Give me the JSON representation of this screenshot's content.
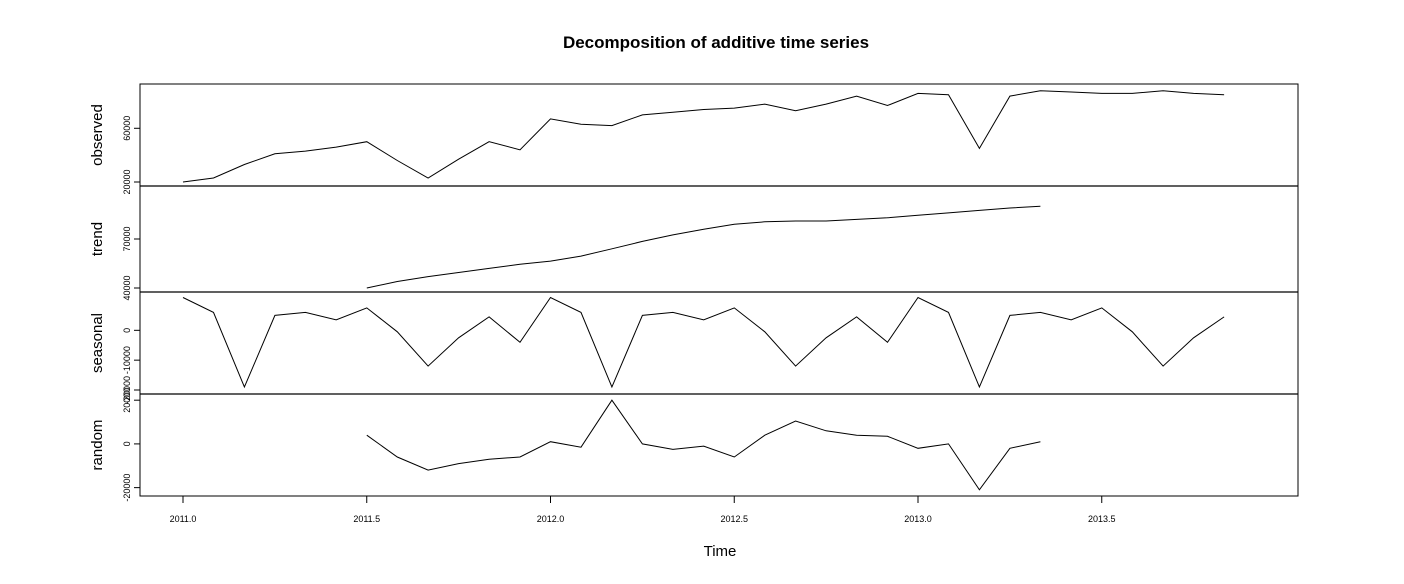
{
  "chart_data": {
    "type": "line",
    "title": "Decomposition of additive time series",
    "xlabel": "Time",
    "xlim": [
      2011.0,
      2013.917
    ],
    "x_ticks": [
      2011.0,
      2011.5,
      2012.0,
      2012.5,
      2013.0,
      2013.5
    ],
    "x_tick_labels": [
      "2011.0",
      "2011.5",
      "2012.0",
      "2012.5",
      "2013.0",
      "2013.5"
    ],
    "x": [
      2011.0,
      2011.083,
      2011.167,
      2011.25,
      2011.333,
      2011.417,
      2011.5,
      2011.583,
      2011.667,
      2011.75,
      2011.833,
      2011.917,
      2012.0,
      2012.083,
      2012.167,
      2012.25,
      2012.333,
      2012.417,
      2012.5,
      2012.583,
      2012.667,
      2012.75,
      2012.833,
      2012.917,
      2013.0,
      2013.083,
      2013.167,
      2013.25,
      2013.333,
      2013.417,
      2013.5,
      2013.583,
      2013.667,
      2013.75,
      2013.833
    ],
    "panels": [
      {
        "name": "observed",
        "ylim": [
          20000,
          90000
        ],
        "y_ticks": [
          20000,
          60000
        ],
        "y_tick_labels": [
          "20000",
          "60000"
        ],
        "values": [
          20000,
          23000,
          33000,
          41000,
          43000,
          46000,
          50000,
          36000,
          23000,
          37000,
          50000,
          44000,
          67000,
          63000,
          62000,
          70000,
          72000,
          74000,
          75000,
          78000,
          73000,
          78000,
          84000,
          77000,
          86000,
          85000,
          45000,
          84000,
          88000,
          87000,
          86000,
          86000,
          88000,
          86000,
          85000
        ]
      },
      {
        "name": "trend",
        "ylim": [
          40000,
          100000
        ],
        "y_ticks": [
          40000,
          70000
        ],
        "y_tick_labels": [
          "40000",
          "70000"
        ],
        "values": [
          null,
          null,
          null,
          null,
          null,
          null,
          40000,
          44000,
          47000,
          49500,
          52000,
          54500,
          56500,
          59500,
          64000,
          68500,
          72500,
          76000,
          79000,
          80500,
          81000,
          81000,
          82000,
          83000,
          84500,
          86000,
          87500,
          89000,
          90000,
          null,
          null,
          null,
          null,
          null,
          null
        ]
      },
      {
        "name": "seasonal",
        "ylim": [
          -20000,
          11500
        ],
        "y_ticks": [
          -20000,
          -10000,
          0
        ],
        "y_tick_labels": [
          "-20000",
          "-10000",
          "0"
        ],
        "values": [
          11000,
          6000,
          -19000,
          5000,
          6000,
          3500,
          7500,
          -500,
          -12000,
          -2500,
          4500,
          -4000,
          11000,
          6000,
          -19000,
          5000,
          6000,
          3500,
          7500,
          -500,
          -12000,
          -2500,
          4500,
          -4000,
          11000,
          6000,
          -19000,
          5000,
          6000,
          3500,
          7500,
          -500,
          -12000,
          -2500,
          4500
        ]
      },
      {
        "name": "random",
        "ylim": [
          -22000,
          21000
        ],
        "y_ticks": [
          -20000,
          0,
          20000
        ],
        "y_tick_labels": [
          "-20000",
          "0",
          "20000"
        ],
        "values": [
          null,
          null,
          null,
          null,
          null,
          null,
          4000,
          -6000,
          -12000,
          -9000,
          -7000,
          -6000,
          1000,
          -1500,
          20000,
          0,
          -2500,
          -1000,
          -6000,
          4000,
          10500,
          6000,
          4000,
          3500,
          -2000,
          0,
          -21000,
          -2000,
          1000,
          null,
          null,
          null,
          null,
          null,
          null
        ]
      }
    ]
  }
}
